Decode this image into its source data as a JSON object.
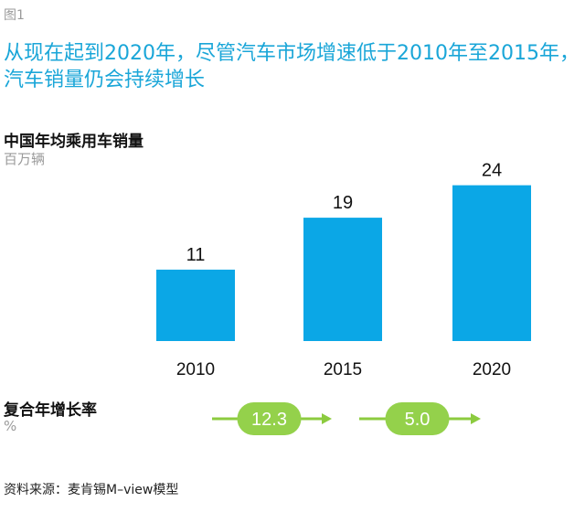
{
  "figure_label": "图1",
  "headline": "从现在起到2020年，尽管汽车市场增速低于2010年至2015年，汽车销量仍会持续增长",
  "chart_data": {
    "type": "bar",
    "title": "中国年均乘用车销量",
    "unit": "百万辆",
    "categories": [
      "2010",
      "2015",
      "2020"
    ],
    "values": [
      11,
      19,
      24
    ],
    "ylim": [
      0,
      28
    ],
    "grid": false,
    "bar_color": "#0ba7e6"
  },
  "cagr": {
    "title": "复合年增长率",
    "unit": "%",
    "values": [
      "12.3",
      "5.0"
    ],
    "arrow_color": "#8ccb3f",
    "bubble_color": "#94d14b"
  },
  "source": "资料来源：麦肯锡M–view模型"
}
